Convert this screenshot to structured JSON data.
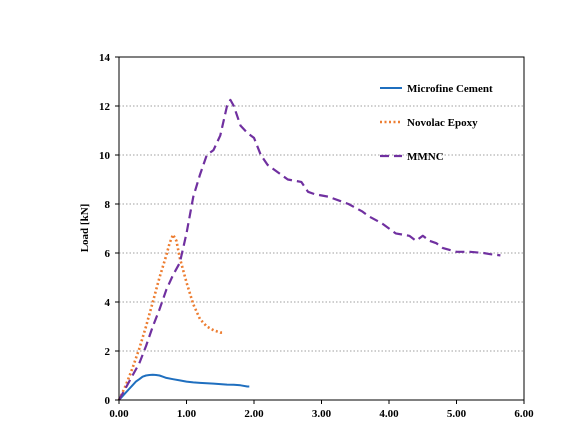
{
  "chart_data": {
    "type": "line",
    "title": "",
    "xlabel": "",
    "ylabel": "Load [kN]",
    "xlim": [
      0,
      6
    ],
    "ylim": [
      0,
      14
    ],
    "x_ticks": [
      "0.00",
      "1.00",
      "2.00",
      "3.00",
      "4.00",
      "5.00",
      "6.00"
    ],
    "y_ticks": [
      "0",
      "2",
      "4",
      "6",
      "8",
      "10",
      "12",
      "14"
    ],
    "grid": "horizontal-dotted",
    "legend_position": "top-right",
    "series": [
      {
        "name": "Microfine Cement",
        "color": "#1f6fbf",
        "style": "solid",
        "points": [
          [
            0,
            0
          ],
          [
            0.05,
            0.15
          ],
          [
            0.1,
            0.3
          ],
          [
            0.15,
            0.45
          ],
          [
            0.2,
            0.6
          ],
          [
            0.25,
            0.75
          ],
          [
            0.3,
            0.85
          ],
          [
            0.35,
            0.95
          ],
          [
            0.4,
            1.0
          ],
          [
            0.45,
            1.02
          ],
          [
            0.5,
            1.03
          ],
          [
            0.55,
            1.02
          ],
          [
            0.6,
            1.0
          ],
          [
            0.65,
            0.95
          ],
          [
            0.7,
            0.9
          ],
          [
            0.8,
            0.85
          ],
          [
            0.9,
            0.8
          ],
          [
            1.0,
            0.75
          ],
          [
            1.1,
            0.72
          ],
          [
            1.2,
            0.7
          ],
          [
            1.3,
            0.68
          ],
          [
            1.4,
            0.67
          ],
          [
            1.5,
            0.65
          ],
          [
            1.6,
            0.63
          ],
          [
            1.7,
            0.62
          ],
          [
            1.8,
            0.6
          ],
          [
            1.9,
            0.55
          ],
          [
            1.93,
            0.55
          ]
        ]
      },
      {
        "name": "Novolac Epoxy",
        "color": "#ed7d31",
        "style": "dotted",
        "points": [
          [
            0,
            0
          ],
          [
            0.1,
            0.6
          ],
          [
            0.2,
            1.3
          ],
          [
            0.3,
            2.1
          ],
          [
            0.4,
            3.0
          ],
          [
            0.5,
            4.0
          ],
          [
            0.6,
            5.0
          ],
          [
            0.7,
            5.9
          ],
          [
            0.75,
            6.4
          ],
          [
            0.8,
            6.75
          ],
          [
            0.85,
            6.5
          ],
          [
            0.9,
            5.8
          ],
          [
            1.0,
            4.8
          ],
          [
            1.1,
            3.9
          ],
          [
            1.2,
            3.3
          ],
          [
            1.3,
            3.0
          ],
          [
            1.4,
            2.85
          ],
          [
            1.5,
            2.75
          ],
          [
            1.53,
            2.75
          ]
        ]
      },
      {
        "name": "MMNC",
        "color": "#7030a0",
        "style": "dashed",
        "points": [
          [
            0,
            0
          ],
          [
            0.1,
            0.5
          ],
          [
            0.2,
            1.0
          ],
          [
            0.3,
            1.5
          ],
          [
            0.4,
            2.2
          ],
          [
            0.5,
            3.0
          ],
          [
            0.6,
            3.7
          ],
          [
            0.7,
            4.5
          ],
          [
            0.8,
            5.1
          ],
          [
            0.9,
            5.6
          ],
          [
            1.0,
            6.8
          ],
          [
            1.1,
            8.3
          ],
          [
            1.2,
            9.2
          ],
          [
            1.3,
            10.0
          ],
          [
            1.4,
            10.2
          ],
          [
            1.5,
            10.8
          ],
          [
            1.6,
            12.0
          ],
          [
            1.65,
            12.25
          ],
          [
            1.7,
            12.0
          ],
          [
            1.8,
            11.2
          ],
          [
            1.9,
            10.9
          ],
          [
            2.0,
            10.7
          ],
          [
            2.1,
            10.0
          ],
          [
            2.2,
            9.6
          ],
          [
            2.4,
            9.2
          ],
          [
            2.5,
            9.0
          ],
          [
            2.7,
            8.9
          ],
          [
            2.8,
            8.5
          ],
          [
            2.9,
            8.4
          ],
          [
            3.1,
            8.3
          ],
          [
            3.3,
            8.1
          ],
          [
            3.4,
            8.0
          ],
          [
            3.6,
            7.7
          ],
          [
            3.7,
            7.5
          ],
          [
            3.9,
            7.2
          ],
          [
            4.0,
            7.0
          ],
          [
            4.1,
            6.8
          ],
          [
            4.3,
            6.7
          ],
          [
            4.4,
            6.5
          ],
          [
            4.5,
            6.7
          ],
          [
            4.6,
            6.5
          ],
          [
            4.7,
            6.4
          ],
          [
            4.8,
            6.2
          ],
          [
            5.0,
            6.05
          ],
          [
            5.2,
            6.05
          ],
          [
            5.4,
            6.0
          ],
          [
            5.5,
            5.95
          ],
          [
            5.65,
            5.9
          ]
        ]
      }
    ]
  }
}
